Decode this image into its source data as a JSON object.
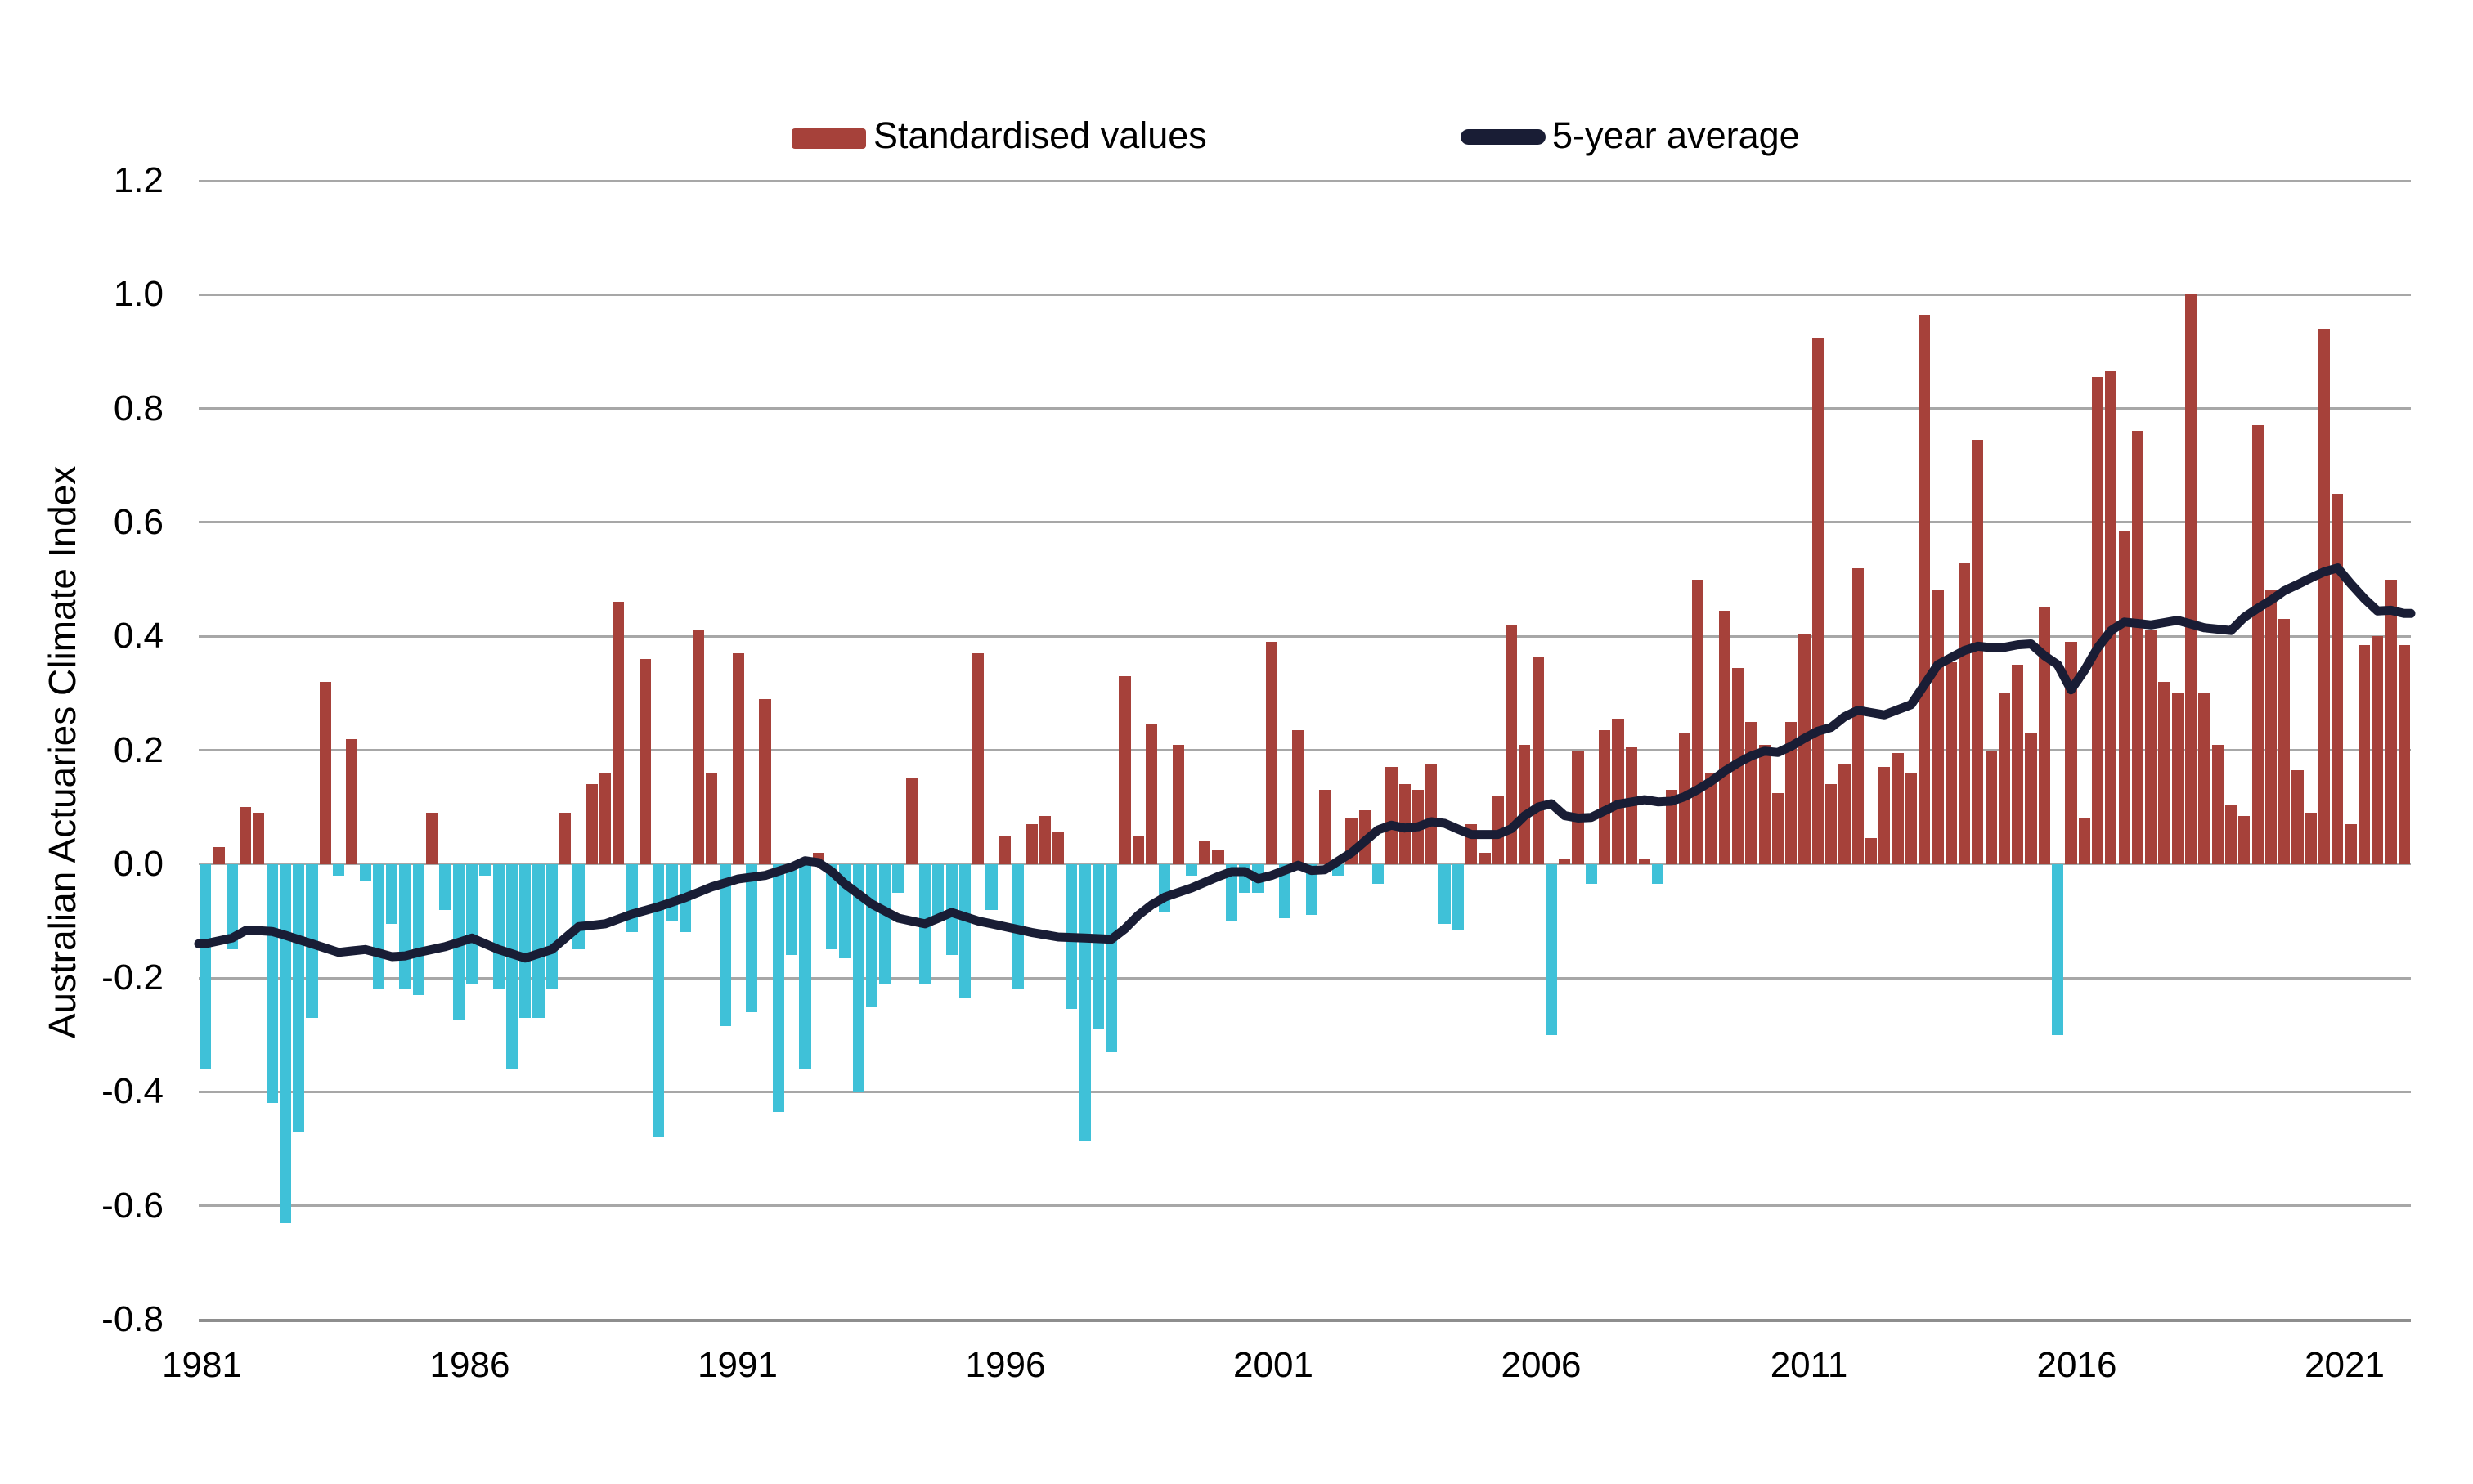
{
  "chart_data": {
    "type": "bar",
    "title": "",
    "ylabel": "Australian Actuaries Climate Index",
    "xlabel": "",
    "ylim": [
      -0.8,
      1.2
    ],
    "ytick_step": 0.2,
    "yticks": [
      1.2,
      1.0,
      0.8,
      0.6,
      0.4,
      0.2,
      0.0,
      -0.2,
      -0.4,
      -0.6,
      -0.8
    ],
    "xticks": [
      1981,
      1986,
      1991,
      1996,
      2001,
      2006,
      2011,
      2016,
      2021
    ],
    "grid": true,
    "legend_position": "top",
    "x_start_year": 1981,
    "frequency": "quarterly",
    "series": [
      {
        "name": "Standardised values",
        "type": "bar",
        "color_positive": "#A6413A",
        "color_negative": "#3FC1D8",
        "values": [
          -0.36,
          0.03,
          -0.15,
          0.1,
          0.09,
          -0.42,
          -0.63,
          -0.47,
          -0.27,
          0.32,
          -0.02,
          0.22,
          -0.03,
          -0.22,
          -0.105,
          -0.22,
          -0.23,
          0.09,
          -0.08,
          -0.275,
          -0.21,
          -0.02,
          -0.22,
          -0.36,
          -0.27,
          -0.27,
          -0.22,
          0.09,
          -0.15,
          0.14,
          0.16,
          0.46,
          -0.12,
          0.36,
          -0.48,
          -0.1,
          -0.12,
          0.41,
          0.16,
          -0.285,
          0.37,
          -0.26,
          0.29,
          -0.435,
          -0.16,
          -0.36,
          0.02,
          -0.15,
          -0.165,
          -0.4,
          -0.25,
          -0.21,
          -0.05,
          0.15,
          -0.21,
          -0.1,
          -0.16,
          -0.235,
          0.37,
          -0.08,
          0.05,
          -0.22,
          0.07,
          0.085,
          0.055,
          -0.255,
          -0.485,
          -0.29,
          -0.33,
          0.33,
          0.05,
          0.245,
          -0.085,
          0.21,
          -0.02,
          0.04,
          0.025,
          -0.1,
          -0.05,
          -0.05,
          0.39,
          -0.095,
          0.235,
          -0.09,
          0.13,
          -0.02,
          0.08,
          0.095,
          -0.035,
          0.17,
          0.14,
          0.13,
          0.175,
          -0.105,
          -0.115,
          0.07,
          0.02,
          0.12,
          0.42,
          0.21,
          0.365,
          -0.3,
          0.01,
          0.2,
          -0.035,
          0.235,
          0.255,
          0.205,
          0.01,
          -0.035,
          0.13,
          0.23,
          0.5,
          0.16,
          0.445,
          0.345,
          0.25,
          0.21,
          0.125,
          0.25,
          0.405,
          0.925,
          0.14,
          0.175,
          0.52,
          0.045,
          0.17,
          0.195,
          0.16,
          0.965,
          0.48,
          0.355,
          0.53,
          0.745,
          0.2,
          0.3,
          0.35,
          0.23,
          0.45,
          -0.3,
          0.39,
          0.08,
          0.855,
          0.865,
          0.585,
          0.76,
          0.41,
          0.32,
          0.3,
          1.0,
          0.3,
          0.21,
          0.105,
          0.085,
          0.77,
          0.48,
          0.43,
          0.165,
          0.09,
          0.94,
          0.65,
          0.07,
          0.385,
          0.4,
          0.5,
          0.385
        ]
      },
      {
        "name": "5-year average",
        "type": "line",
        "color": "#191D35",
        "points": [
          [
            1981.0,
            -0.14
          ],
          [
            1981.5,
            -0.13
          ],
          [
            1981.7,
            -0.117
          ],
          [
            1982.2,
            -0.117
          ],
          [
            1982.5,
            -0.125
          ],
          [
            1983.0,
            -0.14
          ],
          [
            1983.5,
            -0.155
          ],
          [
            1984.0,
            -0.15
          ],
          [
            1984.6,
            -0.165
          ],
          [
            1985.0,
            -0.155
          ],
          [
            1985.5,
            -0.145
          ],
          [
            1986.0,
            -0.13
          ],
          [
            1986.5,
            -0.15
          ],
          [
            1987.0,
            -0.165
          ],
          [
            1987.5,
            -0.15
          ],
          [
            1988.0,
            -0.11
          ],
          [
            1988.5,
            -0.105
          ],
          [
            1989.0,
            -0.088
          ],
          [
            1989.5,
            -0.075
          ],
          [
            1990.0,
            -0.059
          ],
          [
            1990.5,
            -0.04
          ],
          [
            1991.0,
            -0.026
          ],
          [
            1991.5,
            -0.02
          ],
          [
            1992.0,
            -0.005
          ],
          [
            1992.3,
            0.008
          ],
          [
            1992.6,
            0.0
          ],
          [
            1993.0,
            -0.035
          ],
          [
            1993.5,
            -0.07
          ],
          [
            1994.0,
            -0.095
          ],
          [
            1994.5,
            -0.105
          ],
          [
            1995.0,
            -0.085
          ],
          [
            1995.5,
            -0.1
          ],
          [
            1996.0,
            -0.11
          ],
          [
            1996.5,
            -0.12
          ],
          [
            1997.0,
            -0.128
          ],
          [
            1997.5,
            -0.13
          ],
          [
            1998.0,
            -0.132
          ],
          [
            1998.3,
            -0.11
          ],
          [
            1998.6,
            -0.08
          ],
          [
            1999.0,
            -0.058
          ],
          [
            1999.5,
            -0.042
          ],
          [
            2000.0,
            -0.022
          ],
          [
            2000.4,
            -0.008
          ],
          [
            2000.75,
            -0.026
          ],
          [
            2001.0,
            -0.02
          ],
          [
            2001.5,
            -0.002
          ],
          [
            2001.8,
            -0.013
          ],
          [
            2002.0,
            -0.01
          ],
          [
            2002.5,
            0.02
          ],
          [
            2003.0,
            0.06
          ],
          [
            2003.3,
            0.07
          ],
          [
            2003.6,
            0.06
          ],
          [
            2004.1,
            0.078
          ],
          [
            2004.4,
            0.065
          ],
          [
            2004.75,
            0.052
          ],
          [
            2005.25,
            0.052
          ],
          [
            2005.5,
            0.062
          ],
          [
            2005.75,
            0.085
          ],
          [
            2006.0,
            0.1
          ],
          [
            2006.25,
            0.106
          ],
          [
            2006.5,
            0.085
          ],
          [
            2006.8,
            0.08
          ],
          [
            2007.0,
            0.082
          ],
          [
            2007.5,
            0.105
          ],
          [
            2008.0,
            0.113
          ],
          [
            2008.4,
            0.107
          ],
          [
            2008.8,
            0.12
          ],
          [
            2009.2,
            0.142
          ],
          [
            2009.6,
            0.17
          ],
          [
            2010.0,
            0.19
          ],
          [
            2010.3,
            0.2
          ],
          [
            2010.55,
            0.195
          ],
          [
            2010.8,
            0.21
          ],
          [
            2011.2,
            0.232
          ],
          [
            2011.5,
            0.24
          ],
          [
            2011.9,
            0.27
          ],
          [
            2012.0,
            0.27
          ],
          [
            2012.5,
            0.262
          ],
          [
            2013.0,
            0.28
          ],
          [
            2013.5,
            0.35
          ],
          [
            2014.0,
            0.375
          ],
          [
            2014.3,
            0.384
          ],
          [
            2014.6,
            0.378
          ],
          [
            2015.0,
            0.385
          ],
          [
            2015.3,
            0.387
          ],
          [
            2015.5,
            0.366
          ],
          [
            2015.75,
            0.35
          ],
          [
            2016.0,
            0.306
          ],
          [
            2016.25,
            0.34
          ],
          [
            2016.5,
            0.38
          ],
          [
            2016.75,
            0.41
          ],
          [
            2017.0,
            0.425
          ],
          [
            2017.5,
            0.42
          ],
          [
            2018.0,
            0.428
          ],
          [
            2018.5,
            0.415
          ],
          [
            2019.0,
            0.41
          ],
          [
            2019.3,
            0.438
          ],
          [
            2019.7,
            0.46
          ],
          [
            2020.0,
            0.48
          ],
          [
            2020.3,
            0.493
          ],
          [
            2020.7,
            0.512
          ],
          [
            2021.0,
            0.52
          ],
          [
            2021.4,
            0.475
          ],
          [
            2021.8,
            0.44
          ],
          [
            2022.05,
            0.447
          ],
          [
            2022.25,
            0.44
          ]
        ]
      }
    ]
  }
}
